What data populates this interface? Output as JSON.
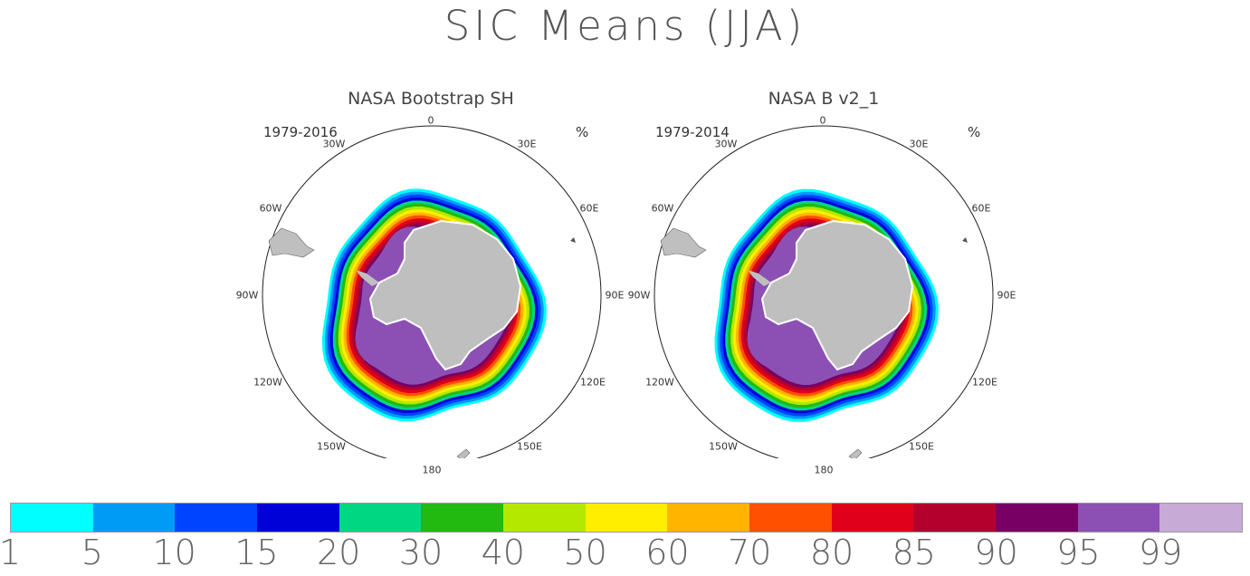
{
  "title": "SIC Means (JJA)",
  "panels": [
    {
      "title": "NASA Bootstrap SH",
      "period": "1979-2016",
      "unit": "%",
      "lon_labels": {
        "0": "0",
        "30E": "30E",
        "60E": "60E",
        "90E": "90E",
        "120E": "120E",
        "150E": "150E",
        "180": "180",
        "150W": "150W",
        "120W": "120W",
        "90W": "90W",
        "60W": "60W",
        "30W": "30W"
      }
    },
    {
      "title": "NASA B v2_1",
      "period": "1979-2014",
      "unit": "%",
      "lon_labels": {
        "0": "0",
        "30E": "30E",
        "60E": "60E",
        "90E": "90E",
        "120E": "120E",
        "150E": "150E",
        "180": "180",
        "150W": "150W",
        "120W": "120W",
        "90W": "90W",
        "60W": "60W",
        "30W": "30W"
      }
    }
  ],
  "colorbar": {
    "colors": [
      "#00ffff",
      "#009bf5",
      "#0044ff",
      "#0000d9",
      "#00d782",
      "#22b911",
      "#b5e800",
      "#ffee00",
      "#ffb400",
      "#ff5000",
      "#e0001c",
      "#b4002d",
      "#780064",
      "#8c50b4",
      "#c8aad7"
    ],
    "labels": [
      "1",
      "5",
      "10",
      "15",
      "20",
      "30",
      "40",
      "50",
      "60",
      "70",
      "80",
      "85",
      "90",
      "95",
      "99"
    ]
  },
  "map_colors": {
    "land": "#bfbfbf",
    "ice_edge_low": "#00ffff",
    "ice_core": "#8c50b4"
  }
}
